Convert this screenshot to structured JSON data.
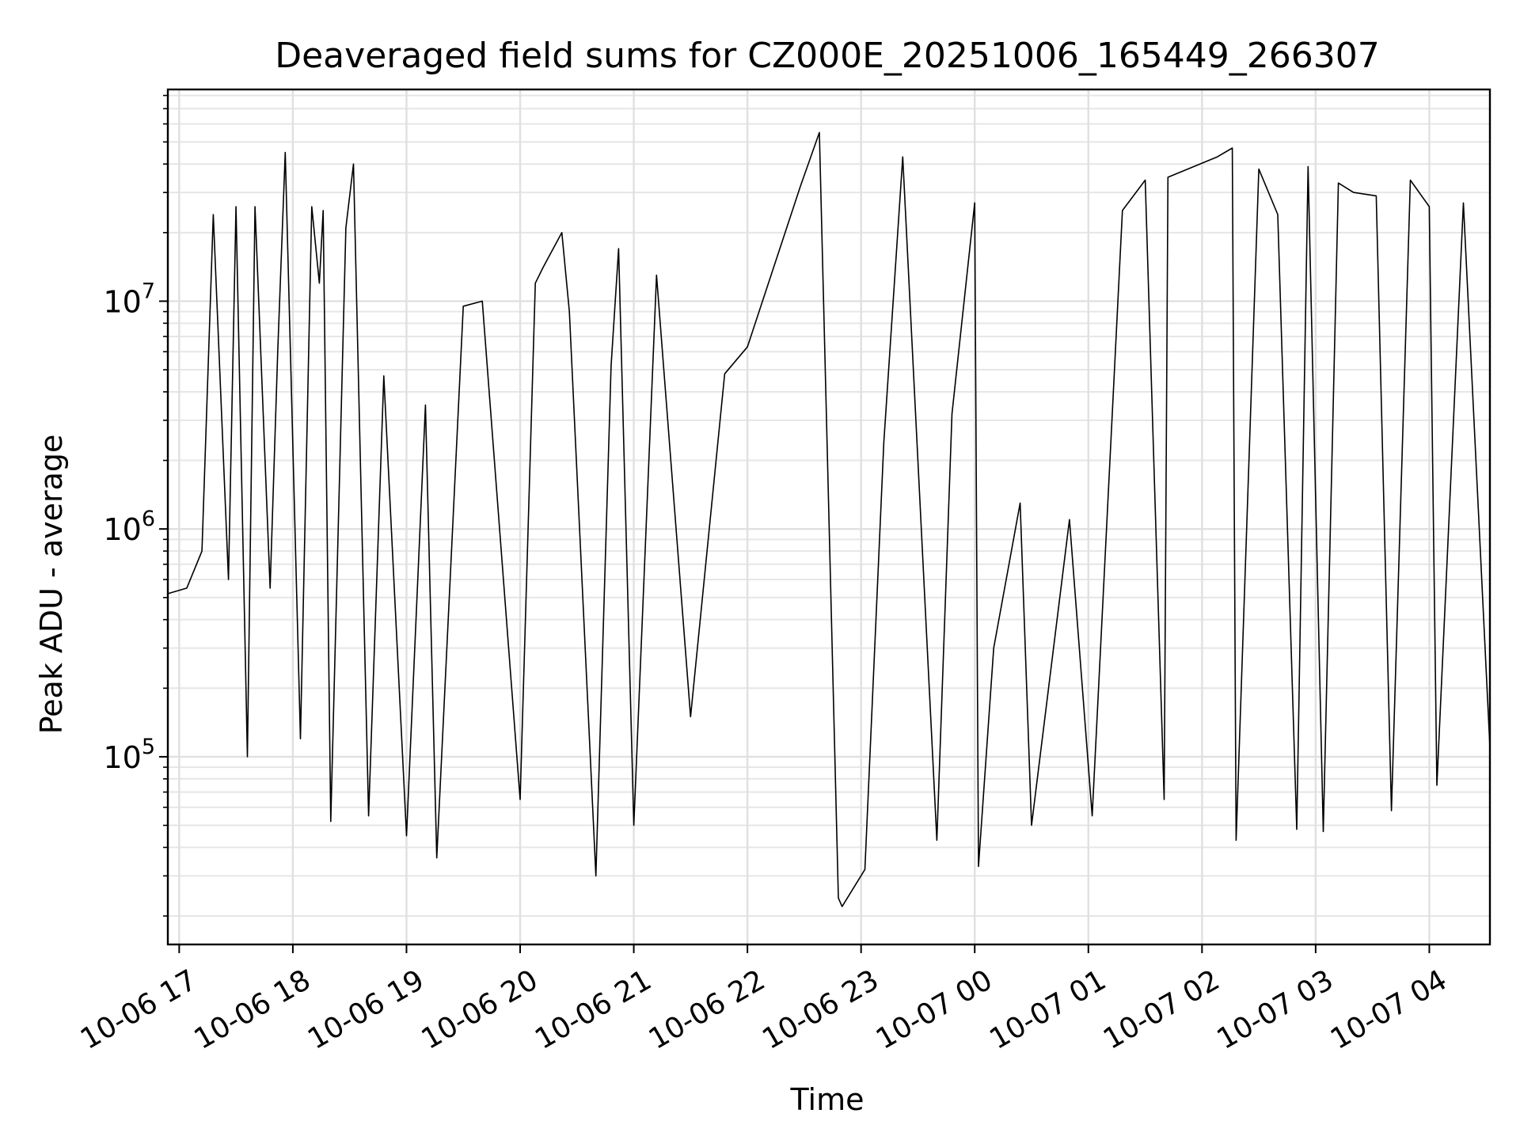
{
  "chart_data": {
    "type": "line",
    "title": "Deaveraged field sums for CZ000E_20251006_165449_266307",
    "xlabel": "Time",
    "ylabel": "Peak ADU - average",
    "x_range": [
      "2025-10-06 16:54",
      "2025-10-07 04:32"
    ],
    "ylim": [
      15000,
      85000000
    ],
    "yscale": "log",
    "grid": true,
    "x_ticks": [
      {
        "value": "2025-10-06 17:00",
        "label": "10-06 17"
      },
      {
        "value": "2025-10-06 18:00",
        "label": "10-06 18"
      },
      {
        "value": "2025-10-06 19:00",
        "label": "10-06 19"
      },
      {
        "value": "2025-10-06 20:00",
        "label": "10-06 20"
      },
      {
        "value": "2025-10-06 21:00",
        "label": "10-06 21"
      },
      {
        "value": "2025-10-06 22:00",
        "label": "10-06 22"
      },
      {
        "value": "2025-10-06 23:00",
        "label": "10-06 23"
      },
      {
        "value": "2025-10-07 00:00",
        "label": "10-07 00"
      },
      {
        "value": "2025-10-07 01:00",
        "label": "10-07 01"
      },
      {
        "value": "2025-10-07 02:00",
        "label": "10-07 02"
      },
      {
        "value": "2025-10-07 03:00",
        "label": "10-07 03"
      },
      {
        "value": "2025-10-07 04:00",
        "label": "10-07 04"
      }
    ],
    "y_ticks": [
      {
        "value": 100000,
        "base": "10",
        "exp": "5"
      },
      {
        "value": 1000000,
        "base": "10",
        "exp": "6"
      },
      {
        "value": 10000000,
        "base": "10",
        "exp": "7"
      }
    ],
    "series": [
      {
        "color": "#000000",
        "points": [
          [
            "2025-10-06 16:54",
            520000.0
          ],
          [
            "2025-10-06 17:04",
            550000.0
          ],
          [
            "2025-10-06 17:12",
            800000.0
          ],
          [
            "2025-10-06 17:18",
            24000000.0
          ],
          [
            "2025-10-06 17:26",
            600000.0
          ],
          [
            "2025-10-06 17:30",
            26000000.0
          ],
          [
            "2025-10-06 17:36",
            100000.0
          ],
          [
            "2025-10-06 17:40",
            26000000.0
          ],
          [
            "2025-10-06 17:48",
            550000.0
          ],
          [
            "2025-10-06 17:52",
            6000000.0
          ],
          [
            "2025-10-06 17:56",
            45000000.0
          ],
          [
            "2025-10-06 18:04",
            120000.0
          ],
          [
            "2025-10-06 18:10",
            26000000.0
          ],
          [
            "2025-10-06 18:14",
            12000000.0
          ],
          [
            "2025-10-06 18:16",
            25000000.0
          ],
          [
            "2025-10-06 18:20",
            52000.0
          ],
          [
            "2025-10-06 18:28",
            21000000.0
          ],
          [
            "2025-10-06 18:32",
            40000000.0
          ],
          [
            "2025-10-06 18:40",
            55000.0
          ],
          [
            "2025-10-06 18:48",
            4700000.0
          ],
          [
            "2025-10-06 19:00",
            45000.0
          ],
          [
            "2025-10-06 19:10",
            3500000.0
          ],
          [
            "2025-10-06 19:16",
            36000.0
          ],
          [
            "2025-10-06 19:30",
            9500000.0
          ],
          [
            "2025-10-06 19:40",
            10000000.0
          ],
          [
            "2025-10-06 20:00",
            65000.0
          ],
          [
            "2025-10-06 20:08",
            12000000.0
          ],
          [
            "2025-10-06 20:12",
            14000000.0
          ],
          [
            "2025-10-06 20:22",
            20000000.0
          ],
          [
            "2025-10-06 20:26",
            9000000.0
          ],
          [
            "2025-10-06 20:40",
            30000.0
          ],
          [
            "2025-10-06 20:48",
            5200000.0
          ],
          [
            "2025-10-06 20:52",
            17000000.0
          ],
          [
            "2025-10-06 21:00",
            50000.0
          ],
          [
            "2025-10-06 21:12",
            13000000.0
          ],
          [
            "2025-10-06 21:30",
            150000.0
          ],
          [
            "2025-10-06 21:48",
            4800000.0
          ],
          [
            "2025-10-06 22:00",
            6300000.0
          ],
          [
            "2025-10-06 22:28",
            32000000.0
          ],
          [
            "2025-10-06 22:38",
            55000000.0
          ],
          [
            "2025-10-06 22:48",
            24000.0
          ],
          [
            "2025-10-06 22:50",
            22000.0
          ],
          [
            "2025-10-06 23:02",
            32000.0
          ],
          [
            "2025-10-06 23:12",
            2400000.0
          ],
          [
            "2025-10-06 23:22",
            43000000.0
          ],
          [
            "2025-10-06 23:40",
            43000.0
          ],
          [
            "2025-10-06 23:48",
            3200000.0
          ],
          [
            "2025-10-07 00:00",
            27000000.0
          ],
          [
            "2025-10-07 00:02",
            33000.0
          ],
          [
            "2025-10-07 00:10",
            300000.0
          ],
          [
            "2025-10-07 00:24",
            1300000.0
          ],
          [
            "2025-10-07 00:30",
            50000.0
          ],
          [
            "2025-10-07 00:50",
            1100000.0
          ],
          [
            "2025-10-07 01:02",
            55000.0
          ],
          [
            "2025-10-07 01:18",
            25000000.0
          ],
          [
            "2025-10-07 01:30",
            34000000.0
          ],
          [
            "2025-10-07 01:40",
            65000.0
          ],
          [
            "2025-10-07 01:42",
            35000000.0
          ],
          [
            "2025-10-07 02:08",
            43000000.0
          ],
          [
            "2025-10-07 02:16",
            47000000.0
          ],
          [
            "2025-10-07 02:18",
            43000.0
          ],
          [
            "2025-10-07 02:30",
            38000000.0
          ],
          [
            "2025-10-07 02:40",
            24000000.0
          ],
          [
            "2025-10-07 02:50",
            48000.0
          ],
          [
            "2025-10-07 02:56",
            39000000.0
          ],
          [
            "2025-10-07 03:04",
            47000.0
          ],
          [
            "2025-10-07 03:12",
            33000000.0
          ],
          [
            "2025-10-07 03:20",
            30000000.0
          ],
          [
            "2025-10-07 03:32",
            29000000.0
          ],
          [
            "2025-10-07 03:40",
            58000.0
          ],
          [
            "2025-10-07 03:50",
            34000000.0
          ],
          [
            "2025-10-07 04:00",
            26000000.0
          ],
          [
            "2025-10-07 04:04",
            75000.0
          ],
          [
            "2025-10-07 04:18",
            27000000.0
          ],
          [
            "2025-10-07 04:32",
            110000.0
          ]
        ]
      }
    ]
  }
}
